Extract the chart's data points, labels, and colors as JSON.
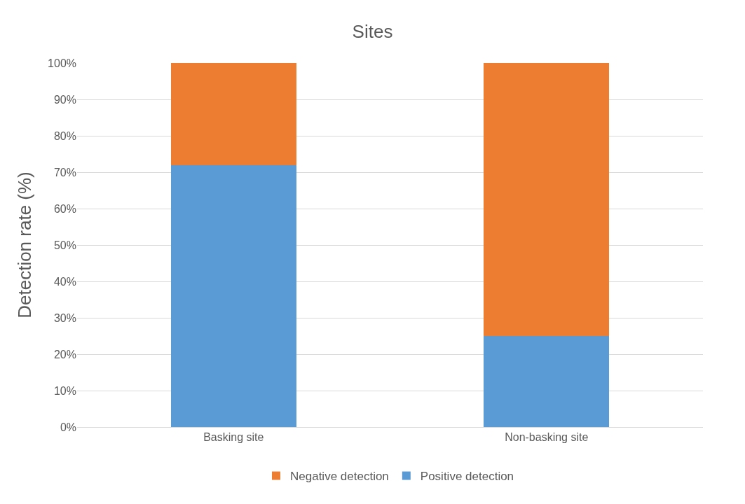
{
  "chart_data": {
    "type": "bar",
    "title": "Sites",
    "ylabel": "Detection rate (%)",
    "stacked": true,
    "categories": [
      "Basking site",
      "Non-basking site"
    ],
    "series": [
      {
        "name": "Positive detection",
        "color": "#5b9bd5",
        "values": [
          72,
          25
        ]
      },
      {
        "name": "Negative detection",
        "color": "#ed7d31",
        "values": [
          28,
          75
        ]
      }
    ],
    "ylim": [
      0,
      100
    ],
    "yticks": [
      {
        "value": 0,
        "label": "0%"
      },
      {
        "value": 10,
        "label": "10%"
      },
      {
        "value": 20,
        "label": "20%"
      },
      {
        "value": 30,
        "label": "30%"
      },
      {
        "value": 40,
        "label": "40%"
      },
      {
        "value": 50,
        "label": "50%"
      },
      {
        "value": 60,
        "label": "60%"
      },
      {
        "value": 70,
        "label": "70%"
      },
      {
        "value": 80,
        "label": "80%"
      },
      {
        "value": 90,
        "label": "90%"
      },
      {
        "value": 100,
        "label": "100%"
      }
    ],
    "grid": "y",
    "legend": "bottom"
  }
}
